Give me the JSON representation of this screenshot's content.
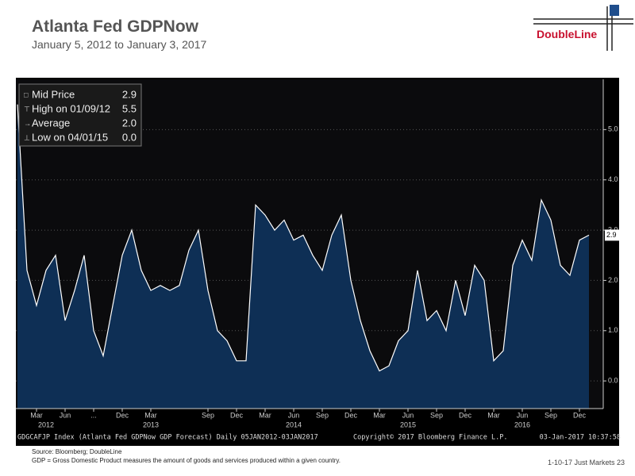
{
  "header": {
    "title": "Atlanta Fed GDPNow",
    "subtitle": "January 5, 2012 to January 3, 2017",
    "logo": "DoubleLine"
  },
  "chart_data": {
    "type": "area",
    "x": [
      "2012-01",
      "2012-02",
      "2012-03",
      "2012-04",
      "2012-05",
      "2012-06",
      "2012-07",
      "2012-08",
      "2012-09",
      "2012-10",
      "2012-11",
      "2012-12",
      "2013-01",
      "2013-02",
      "2013-03",
      "2013-04",
      "2013-05",
      "2013-06",
      "2013-07",
      "2013-08",
      "2013-09",
      "2013-10",
      "2013-11",
      "2013-12",
      "2014-01",
      "2014-02",
      "2014-03",
      "2014-04",
      "2014-05",
      "2014-06",
      "2014-07",
      "2014-08",
      "2014-09",
      "2014-10",
      "2014-11",
      "2014-12",
      "2015-01",
      "2015-02",
      "2015-03",
      "2015-04",
      "2015-05",
      "2015-06",
      "2015-07",
      "2015-08",
      "2015-09",
      "2015-10",
      "2015-11",
      "2015-12",
      "2016-01",
      "2016-02",
      "2016-03",
      "2016-04",
      "2016-05",
      "2016-06",
      "2016-07",
      "2016-08",
      "2016-09",
      "2016-10",
      "2016-11",
      "2016-12",
      "2017-01"
    ],
    "values": [
      5.5,
      2.2,
      1.5,
      2.2,
      2.5,
      1.2,
      1.8,
      2.5,
      1.0,
      0.5,
      1.5,
      2.5,
      3.0,
      2.2,
      1.8,
      1.9,
      1.8,
      1.9,
      2.6,
      3.0,
      1.8,
      1.0,
      0.8,
      0.4,
      0.4,
      3.5,
      3.3,
      3.0,
      3.2,
      2.8,
      2.9,
      2.5,
      2.2,
      2.9,
      3.3,
      2.0,
      1.2,
      0.6,
      0.2,
      0.3,
      0.8,
      1.0,
      2.2,
      1.2,
      1.4,
      1.0,
      2.0,
      1.3,
      2.3,
      2.0,
      0.4,
      0.6,
      2.3,
      2.8,
      2.4,
      3.6,
      3.2,
      2.3,
      2.1,
      2.8,
      2.9
    ],
    "color": "#0e2f55",
    "line_color": "#ffffff",
    "ylim": [
      -0.55,
      6.0
    ],
    "yticks": [
      {
        "value": 0,
        "label": "0.0"
      },
      {
        "value": 1,
        "label": "1.0"
      },
      {
        "value": 2,
        "label": "2.0"
      },
      {
        "value": 3,
        "label": "3.0"
      },
      {
        "value": 4,
        "label": "4.0"
      },
      {
        "value": 5,
        "label": "5.0"
      }
    ],
    "xticks": [
      {
        "value": "2012-03",
        "label": "Mar"
      },
      {
        "value": "2012-06",
        "label": "Jun"
      },
      {
        "value": "2012-09",
        "label": "..."
      },
      {
        "value": "2012-12",
        "label": "Dec"
      },
      {
        "value": "2013-03",
        "label": "Mar"
      },
      {
        "value": "2013-09",
        "label": "Sep"
      },
      {
        "value": "2013-12",
        "label": "Dec"
      },
      {
        "value": "2014-03",
        "label": "Mar"
      },
      {
        "value": "2014-06",
        "label": "Jun"
      },
      {
        "value": "2014-09",
        "label": "Sep"
      },
      {
        "value": "2014-12",
        "label": "Dec"
      },
      {
        "value": "2015-03",
        "label": "Mar"
      },
      {
        "value": "2015-06",
        "label": "Jun"
      },
      {
        "value": "2015-09",
        "label": "Sep"
      },
      {
        "value": "2015-12",
        "label": "Dec"
      },
      {
        "value": "2016-03",
        "label": "Mar"
      },
      {
        "value": "2016-06",
        "label": "Jun"
      },
      {
        "value": "2016-09",
        "label": "Sep"
      },
      {
        "value": "2016-12",
        "label": "Dec"
      }
    ],
    "year_labels": [
      {
        "value": "2012-04",
        "label": "2012"
      },
      {
        "value": "2013-03",
        "label": "2013"
      },
      {
        "value": "2014-06",
        "label": "2014"
      },
      {
        "value": "2015-06",
        "label": "2015"
      },
      {
        "value": "2016-06",
        "label": "2016"
      }
    ],
    "grid": true,
    "last_label": "2.9",
    "legend": [
      [
        "Mid Price",
        "2.9"
      ],
      [
        "High on 01/09/12",
        "5.5"
      ],
      [
        "Average",
        "2.0"
      ],
      [
        "Low on 04/01/15",
        "0.0"
      ]
    ],
    "footer_left": "GDGCAFJP Index (Atlanta Fed GDPNow GDP Forecast) Daily 05JAN2012-03JAN2017",
    "footer_mid": "Copyright© 2017 Bloomberg Finance L.P.",
    "footer_right": "03-Jan-2017 10:37:58"
  },
  "footer": {
    "source": "Source: Bloomberg; DoubleLine",
    "note": "GDP = Gross Domestic Product measures the amount of goods and services produced within a given country.",
    "page": "1-10-17 Just Markets  23"
  }
}
